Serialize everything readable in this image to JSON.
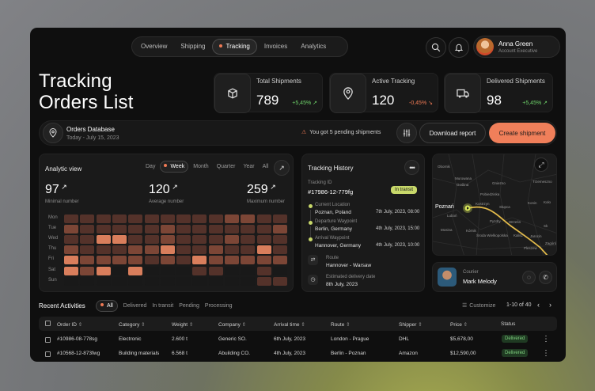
{
  "nav": {
    "tabs": [
      "Overview",
      "Shipping",
      "Tracking",
      "Invoices",
      "Analytics"
    ],
    "active": "Tracking"
  },
  "user": {
    "name": "Anna Green",
    "role": "Account Executive"
  },
  "page": {
    "title_line1": "Tracking",
    "title_line2": "Orders List"
  },
  "stats": [
    {
      "label": "Total Shipments",
      "value": "789",
      "delta": "+5,45% ↗",
      "color": "#6fd46a",
      "icon": "box-icon"
    },
    {
      "label": "Active Tracking",
      "value": "120",
      "delta": "-0,45% ↘",
      "color": "#ef7a55",
      "icon": "location-pin-icon"
    },
    {
      "label": "Delivered Shipments",
      "value": "98",
      "delta": "+5,45% ↗",
      "color": "#6fd46a",
      "icon": "truck-icon"
    }
  ],
  "database": {
    "name": "Orders Database",
    "date": "Today - July 15, 2023"
  },
  "alert": "You got 5 pending shipments",
  "buttons": {
    "download": "Download report",
    "create": "Create shipment"
  },
  "analytic": {
    "title": "Analytic view",
    "ranges": [
      "Day",
      "Week",
      "Month",
      "Quarter",
      "Year",
      "All"
    ],
    "active_range": "Week",
    "metrics": [
      {
        "value": "97",
        "label": "Minimal number"
      },
      {
        "value": "120",
        "label": "Average number"
      },
      {
        "value": "259",
        "label": "Maximum number"
      }
    ],
    "days": [
      "Mon",
      "Tue",
      "Wed",
      "Thu",
      "Fri",
      "Sat",
      "Sun"
    ],
    "heat": [
      [
        1,
        1,
        1,
        1,
        1,
        1,
        1,
        1,
        1,
        1,
        2,
        2,
        1,
        1
      ],
      [
        2,
        1,
        1,
        1,
        1,
        1,
        2,
        1,
        1,
        1,
        1,
        1,
        1,
        2
      ],
      [
        1,
        1,
        3,
        3,
        1,
        1,
        2,
        1,
        1,
        1,
        2,
        1,
        1,
        1
      ],
      [
        2,
        1,
        1,
        1,
        2,
        2,
        3,
        1,
        1,
        2,
        1,
        1,
        3,
        1
      ],
      [
        3,
        2,
        2,
        2,
        2,
        1,
        2,
        1,
        3,
        2,
        2,
        2,
        2,
        2
      ],
      [
        3,
        2,
        3,
        0,
        3,
        0,
        0,
        0,
        1,
        1,
        0,
        0,
        1,
        0
      ],
      [
        0,
        0,
        0,
        0,
        0,
        0,
        0,
        0,
        0,
        0,
        0,
        0,
        1,
        1
      ]
    ],
    "heat_colors": [
      "#191919",
      "#54322a",
      "#7c4636",
      "#d97e5c"
    ]
  },
  "history": {
    "title": "Tracking History",
    "id_label": "Tracking ID",
    "id": "#17986-12-779fg",
    "status": "In transit",
    "steps": [
      {
        "label": "Current Location",
        "place": "Poznan, Poland",
        "time": "7th July, 2023, 08:00"
      },
      {
        "label": "Departure Waypoint",
        "place": "Berlin, Germany",
        "time": "4th July, 2023, 15:00"
      },
      {
        "label": "Arrival Waypoint",
        "place": "Hannover, Germany",
        "time": "4th July, 2023, 10:00"
      }
    ],
    "route_label": "Route",
    "route": "Hannover - Warsaw",
    "eta_label": "Estimated delivery date",
    "eta": "8th July, 2023"
  },
  "map": {
    "labels": [
      "Obornik",
      "Murowana",
      "Goślina",
      "Gniezno",
      "Trzemeszno",
      "Poznań",
      "Pobiedziska",
      "Kostrzyn",
      "Mosina",
      "Luboń",
      "Kórnik",
      "Środa Wielkopolska",
      "Wrześn",
      "Jarocin",
      "Pleszew",
      "Zagórów",
      "Konin",
      "Koło",
      "Słupca",
      "Kalisz",
      "Sk",
      "Pyzdry"
    ]
  },
  "courier": {
    "label": "Courier",
    "name": "Mark Melody"
  },
  "activities": {
    "title": "Recent Activities",
    "filters": [
      "All",
      "Delivered",
      "In transit",
      "Pending",
      "Processing"
    ],
    "customize": "Customize",
    "pagination": "1-10 of 40",
    "columns": [
      "Order ID",
      "Category",
      "Weight",
      "Company",
      "Arrival time",
      "Route",
      "Shipper",
      "Price",
      "Status"
    ],
    "rows": [
      [
        "#10986-08-778sg",
        "Electronic",
        "2.600 t",
        "Generic SO.",
        "6th July, 2023",
        "London - Prague",
        "DHL",
        "$5,678,00",
        "Delivered"
      ],
      [
        "#10568-12-873fwg",
        "Building materials",
        "6.568 t",
        "Abuilding CO.",
        "4th July, 2023",
        "Berlin - Poznan",
        "Amazon",
        "$12,590,00",
        "Delivered"
      ]
    ]
  }
}
